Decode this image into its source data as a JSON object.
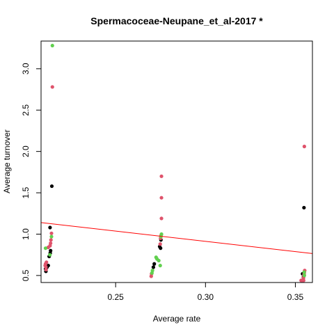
{
  "chart_data": {
    "type": "scatter",
    "title": "Spermacoceae-Neupane_et_al-2017 *",
    "xlabel": "Average rate",
    "ylabel": "Average turnover",
    "xlim": [
      0.2085,
      0.3595
    ],
    "ylim": [
      0.415,
      3.335
    ],
    "xticks": [
      0.25,
      0.3,
      0.35
    ],
    "xtick_labels": [
      "0.25",
      "0.30",
      "0.35"
    ],
    "yticks": [
      0.5,
      1.0,
      1.5,
      2.0,
      2.5,
      3.0
    ],
    "ytick_labels": [
      "0.5",
      "1.0",
      "1.5",
      "2.0",
      "2.5",
      "3.0"
    ],
    "grid": false,
    "legend": "none",
    "colors": {
      "black": "#000000",
      "red": "#DF536B",
      "green": "#61D04F",
      "line": "#FF0000"
    },
    "series": [
      {
        "color": "black",
        "points": [
          [
            0.2145,
            1.58
          ],
          [
            0.2135,
            1.08
          ],
          [
            0.2138,
            0.8
          ],
          [
            0.2136,
            0.77
          ],
          [
            0.213,
            0.73
          ],
          [
            0.2125,
            0.62
          ],
          [
            0.2118,
            0.6
          ],
          [
            0.211,
            0.58
          ],
          [
            0.2112,
            0.55
          ],
          [
            0.2715,
            0.64
          ],
          [
            0.271,
            0.6
          ],
          [
            0.2745,
            0.85
          ],
          [
            0.275,
            0.83
          ],
          [
            0.2752,
            0.93
          ],
          [
            0.3548,
            1.32
          ],
          [
            0.354,
            0.52
          ],
          [
            0.3545,
            0.48
          ]
        ]
      },
      {
        "color": "red",
        "points": [
          [
            0.2148,
            2.78
          ],
          [
            0.2143,
            1.01
          ],
          [
            0.214,
            0.93
          ],
          [
            0.2138,
            0.89
          ],
          [
            0.2135,
            0.86
          ],
          [
            0.2125,
            0.84
          ],
          [
            0.2115,
            0.66
          ],
          [
            0.211,
            0.64
          ],
          [
            0.2108,
            0.62
          ],
          [
            0.2112,
            0.6
          ],
          [
            0.2113,
            0.57
          ],
          [
            0.2755,
            1.7
          ],
          [
            0.2755,
            1.44
          ],
          [
            0.2755,
            1.19
          ],
          [
            0.2752,
            0.98
          ],
          [
            0.275,
            0.95
          ],
          [
            0.2748,
            0.88
          ],
          [
            0.27,
            0.52
          ],
          [
            0.2698,
            0.49
          ],
          [
            0.355,
            2.06
          ],
          [
            0.3552,
            0.56
          ],
          [
            0.355,
            0.54
          ],
          [
            0.3549,
            0.52
          ],
          [
            0.3547,
            0.5
          ],
          [
            0.3545,
            0.47
          ],
          [
            0.3532,
            0.44
          ],
          [
            0.354,
            0.44
          ],
          [
            0.3546,
            0.44
          ]
        ]
      },
      {
        "color": "green",
        "points": [
          [
            0.2148,
            3.28
          ],
          [
            0.2143,
            0.97
          ],
          [
            0.211,
            0.83
          ],
          [
            0.2134,
            0.75
          ],
          [
            0.2755,
            1.0
          ],
          [
            0.2752,
            0.97
          ],
          [
            0.2725,
            0.72
          ],
          [
            0.273,
            0.7
          ],
          [
            0.274,
            0.68
          ],
          [
            0.2748,
            0.62
          ],
          [
            0.2705,
            0.56
          ],
          [
            0.2702,
            0.53
          ],
          [
            0.3549,
            0.54
          ],
          [
            0.355,
            0.5
          ]
        ]
      }
    ],
    "trendline": {
      "x": [
        0.2085,
        0.3595
      ],
      "y": [
        1.14,
        0.765
      ]
    }
  }
}
